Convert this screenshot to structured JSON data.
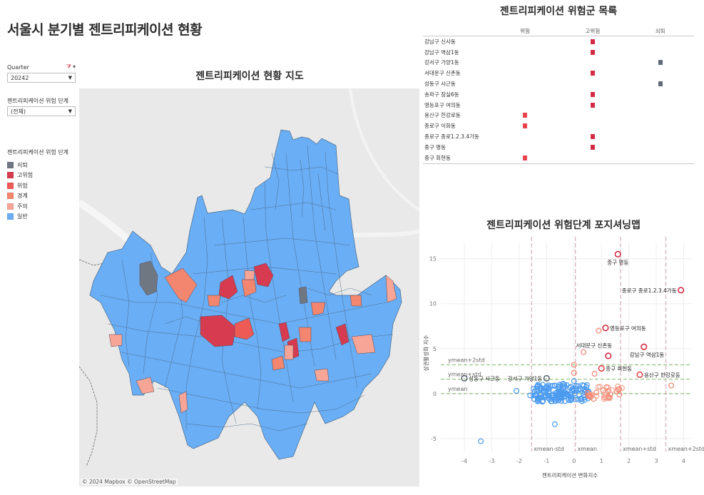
{
  "page": {
    "title": "서울시 분기별 젠트리피케이션 현황"
  },
  "filters": {
    "quarter": {
      "label": "Quarter",
      "value": "20242",
      "funnel_icon": "filter-clear-icon",
      "menu_icon": "caret-down-icon"
    },
    "risk_level": {
      "label": "젠트리피케이션 위험 단계",
      "value": "(전체)"
    }
  },
  "legend": {
    "title": "젠트리피케이션 위험 단계",
    "items": [
      {
        "label": "쇠퇴",
        "color": "#6f7782"
      },
      {
        "label": "고위험",
        "color": "#d63b4f"
      },
      {
        "label": "위험",
        "color": "#ee5a55"
      },
      {
        "label": "경계",
        "color": "#f2866f"
      },
      {
        "label": "주의",
        "color": "#f7a596"
      },
      {
        "label": "일반",
        "color": "#6aaef5"
      }
    ]
  },
  "map": {
    "title": "젠트리피케이션 현황 지도",
    "attribution": "© 2024 Mapbox  © OpenStreetMap"
  },
  "risk_list": {
    "title": "젠트리피케이션 위험군 목록",
    "columns": [
      "위험",
      "고위험",
      "쇠퇴"
    ],
    "colors": {
      "위험": "#e8444d",
      "고위험": "#d42b45",
      "쇠퇴": "#5f6b7a"
    },
    "rows": [
      {
        "name": "강남구 신사동",
        "level": "고위험"
      },
      {
        "name": "강남구 역삼1동",
        "level": "고위험"
      },
      {
        "name": "강서구 가양1동",
        "level": "쇠퇴"
      },
      {
        "name": "서대문구 신촌동",
        "level": "고위험"
      },
      {
        "name": "성동구 사근동",
        "level": "쇠퇴"
      },
      {
        "name": "송파구 잠실6동",
        "level": "고위험"
      },
      {
        "name": "영등포구 여의동",
        "level": "고위험"
      },
      {
        "name": "용산구 한강로동",
        "level": "위험"
      },
      {
        "name": "종로구 이화동",
        "level": "위험"
      },
      {
        "name": "종로구 종로1.2.3.4가동",
        "level": "고위험"
      },
      {
        "name": "중구 명동",
        "level": "고위험"
      },
      {
        "name": "중구 회현동",
        "level": "위험"
      }
    ]
  },
  "scatter": {
    "title": "젠트리피케이션 위험단계 포지셔닝맵"
  },
  "chart_data": {
    "type": "scatter",
    "title": "젠트리피케이션 위험단계 포지셔닝맵",
    "xlabel": "젠트리피케이션 변화지수",
    "ylabel": "상권활성화 지수",
    "xlim": [
      -4.6,
      4.3
    ],
    "ylim": [
      -6.6,
      16.8
    ],
    "x_ticks": [
      -4,
      -3,
      -2,
      -1,
      0,
      1,
      2,
      3,
      4
    ],
    "y_ticks": [
      -5,
      0,
      5,
      10,
      15
    ],
    "grid": true,
    "reference_lines": {
      "vertical": [
        {
          "label": "xmean-std",
          "x": -1.55
        },
        {
          "label": "xmean",
          "x": 0.05
        },
        {
          "label": "xmean+std",
          "x": 1.7
        },
        {
          "label": "xmean+2std",
          "x": 3.35
        }
      ],
      "horizontal": [
        {
          "label": "ymean",
          "y": 0.0
        },
        {
          "label": "ymean+std",
          "y": 1.6
        },
        {
          "label": "ymean+2std",
          "y": 3.2
        }
      ]
    },
    "labeled_points": [
      {
        "label": "중구 명동",
        "x": 1.6,
        "y": 15.5,
        "level": "고위험"
      },
      {
        "label": "종로구 종로1.2.3.4가동",
        "x": 3.9,
        "y": 11.5,
        "level": "고위험"
      },
      {
        "label": "영등포구 여의동",
        "x": 1.15,
        "y": 7.3,
        "level": "고위험"
      },
      {
        "label": "서대문구 신촌동",
        "x": 1.25,
        "y": 4.2,
        "level": "고위험"
      },
      {
        "label": "강남구 역삼1동",
        "x": 2.55,
        "y": 5.2,
        "level": "고위험"
      },
      {
        "label": "중구 회현동",
        "x": 1.0,
        "y": 2.8,
        "level": "위험"
      },
      {
        "label": "용산구 한강로동",
        "x": 2.4,
        "y": 2.1,
        "level": "위험"
      },
      {
        "label": "성동구 사근동",
        "x": -4.0,
        "y": 1.7,
        "level": "쇠퇴"
      },
      {
        "label": "강서구 가양1동",
        "x": -1.0,
        "y": 1.7,
        "level": "쇠퇴"
      }
    ],
    "other_points_summary": {
      "일반": "dense cluster around x -1.5..0.6, y -1..1; outliers (-3.4,-5.3), (-0.7,-3.4), (-2.1,0.3)",
      "경계/주의": "cluster x 0.5..1.8, y -0.5..1; points (0.9,7.0), (0.35,4.6), (0,3.2), (0,2.3), (0.75,2.2), (3.55,0.9)"
    },
    "colors": {
      "고위험": "#d42b45",
      "위험": "#e8444d",
      "경계": "#f2866f",
      "주의": "#f7a596",
      "일반": "#4a9af0",
      "쇠퇴": "#5f6b7a"
    }
  }
}
